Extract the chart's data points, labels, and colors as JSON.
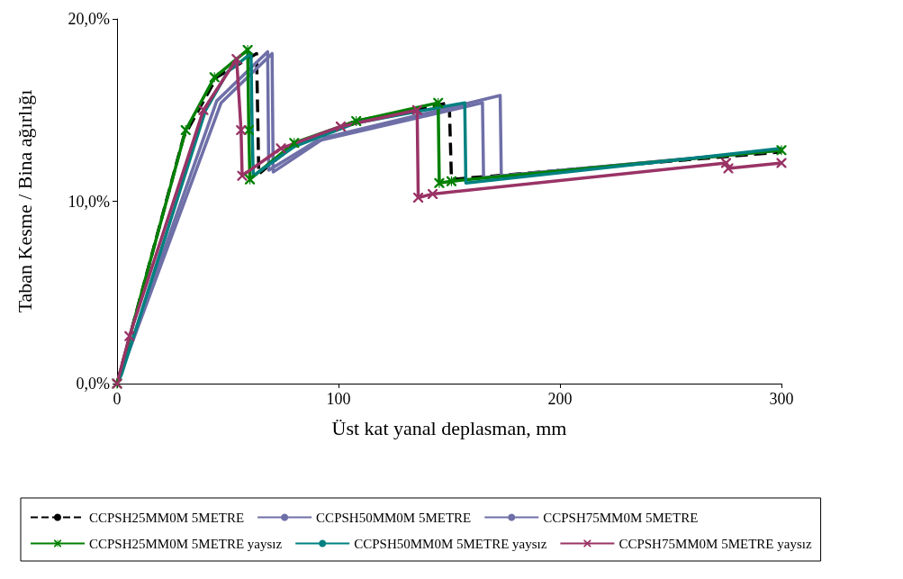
{
  "chart_data": {
    "type": "line",
    "xlabel": "Üst kat yanal deplasman, mm",
    "ylabel": "Taban Kesme / Bina ağırlığı",
    "xlim": [
      0,
      300
    ],
    "xticks": [
      0,
      100,
      200,
      300
    ],
    "ylim": [
      0,
      20
    ],
    "yticks": [
      {
        "value": 0,
        "label": "0,0%"
      },
      {
        "value": 10,
        "label": "10,0%"
      },
      {
        "value": 20,
        "label": "20,0%"
      }
    ],
    "grid": false,
    "legend": "bottom",
    "series": [
      {
        "name": "CCPSH25MM0M 5METRE",
        "color": "#000000",
        "line_style": "dashed",
        "marker": "none",
        "x": [
          0,
          30,
          45,
          63,
          64,
          80,
          108,
          150,
          151,
          300
        ],
        "values": [
          0,
          13.5,
          16.8,
          18.1,
          11.5,
          13.1,
          14.4,
          15.4,
          11.2,
          12.7
        ]
      },
      {
        "name": "CCPSH50MM0M 5METRE",
        "color": "#6f6fa8",
        "line_style": "solid",
        "marker": "none",
        "x": [
          0,
          45,
          68,
          68.5,
          90,
          165,
          165.5,
          300
        ],
        "values": [
          0,
          15.5,
          18.2,
          11.7,
          13.3,
          15.4,
          11.3,
          12.8
        ]
      },
      {
        "name": "CCPSH75MM0M 5METRE",
        "color": "#6f6fa8",
        "line_style": "solid",
        "marker": "none",
        "x": [
          0,
          47,
          70,
          70.5,
          94,
          173,
          173.5,
          300
        ],
        "values": [
          0,
          15.4,
          18.1,
          11.6,
          13.5,
          15.8,
          11.4,
          12.8
        ]
      },
      {
        "name": "CCPSH25MM0M 5METRE yaysız",
        "color": "#008000",
        "line_style": "solid",
        "marker": "star",
        "x": [
          0,
          31,
          44,
          59,
          59.5,
          60,
          80,
          108,
          145,
          145.5,
          151,
          300
        ],
        "values": [
          0,
          13.9,
          16.8,
          18.3,
          13.9,
          11.2,
          13.2,
          14.4,
          15.4,
          11.0,
          11.1,
          12.8
        ]
      },
      {
        "name": "CCPSH50MM0M 5METRE yaysız",
        "color": "#008080",
        "line_style": "solid",
        "marker": "none",
        "x": [
          0,
          2,
          40,
          50,
          60.5,
          61,
          61.5,
          80,
          108,
          157,
          157.5,
          300
        ],
        "values": [
          0,
          0.5,
          15.0,
          17.1,
          18.1,
          14.0,
          11.4,
          13.0,
          14.3,
          15.4,
          11.0,
          12.9
        ]
      },
      {
        "name": "CCPSH75MM0M 5METRE yaysız",
        "color": "#993366",
        "line_style": "solid",
        "marker": "cross",
        "x": [
          0,
          5.6,
          39,
          54,
          56,
          56.5,
          74,
          101,
          135.5,
          136,
          142.5,
          275,
          276,
          300
        ],
        "values": [
          0,
          2.6,
          15.0,
          17.8,
          13.9,
          11.4,
          12.9,
          14.1,
          15.0,
          10.2,
          10.4,
          12.1,
          11.8,
          12.1
        ]
      }
    ]
  }
}
